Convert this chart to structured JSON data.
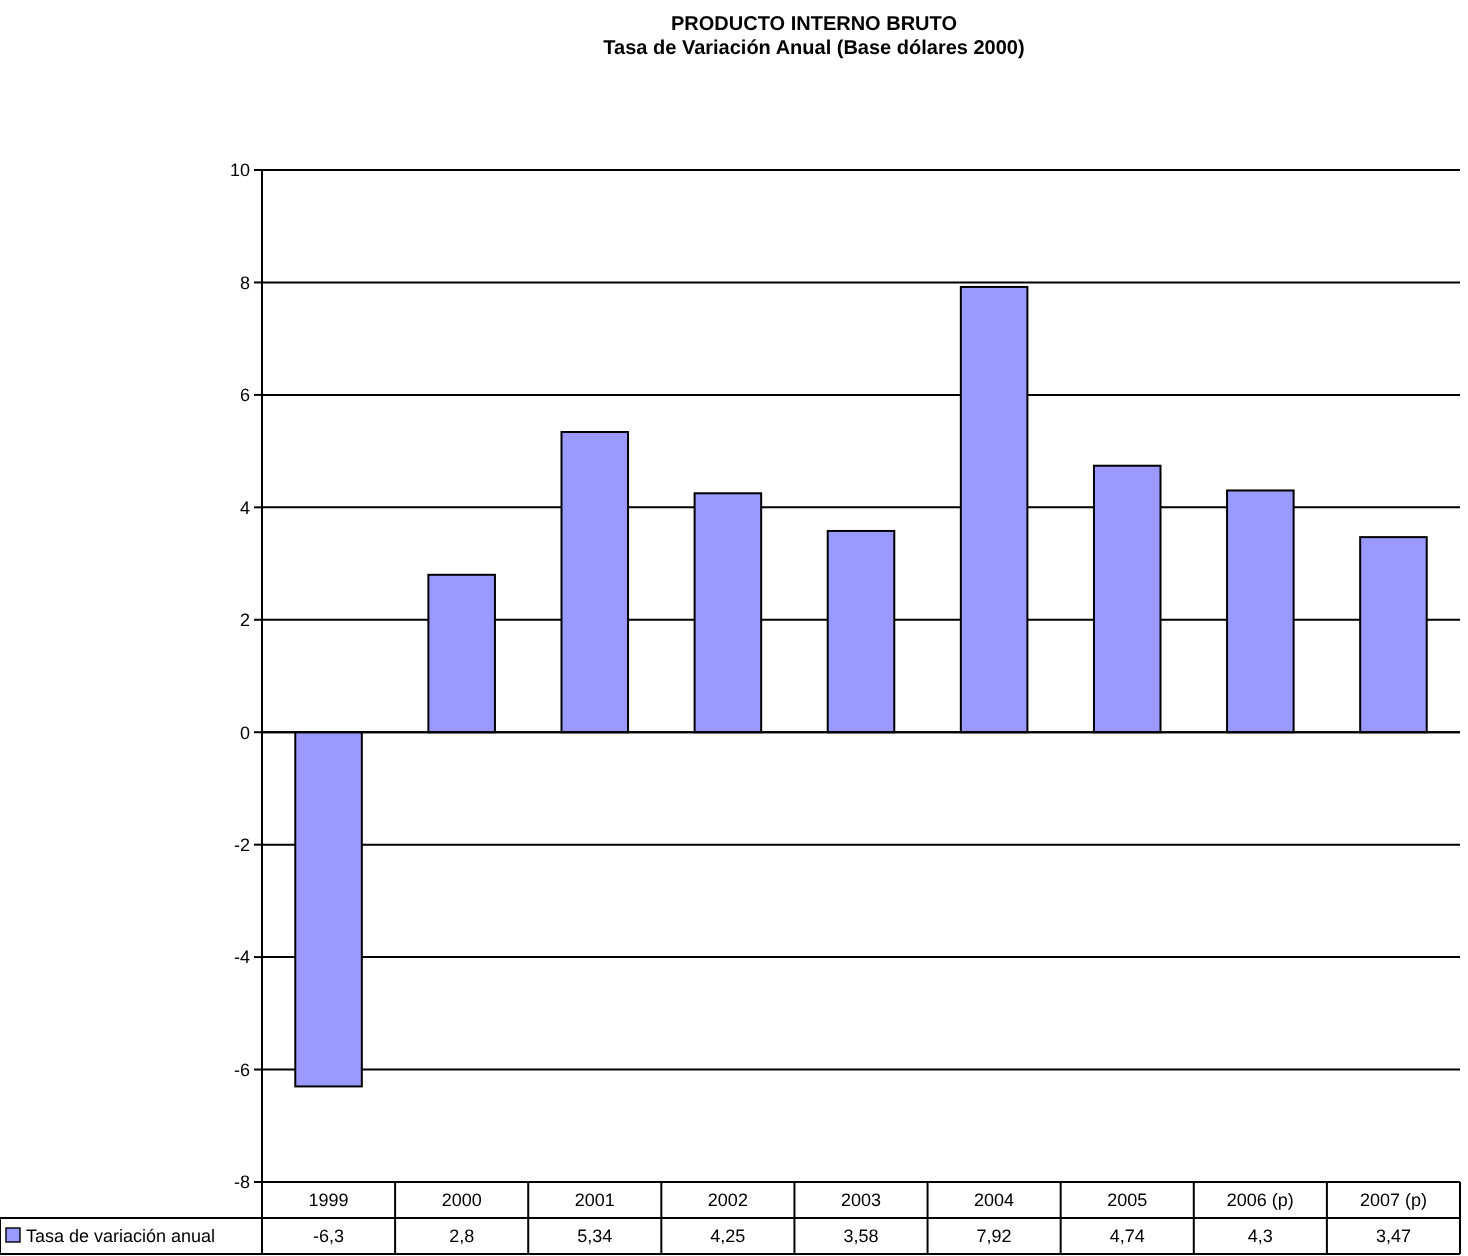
{
  "chart_data": {
    "type": "bar",
    "title": "PRODUCTO INTERNO BRUTO",
    "subtitle": "Tasa de Variación Anual (Base dólares 2000)",
    "categories": [
      "1999",
      "2000",
      "2001",
      "2002",
      "2003",
      "2004",
      "2005",
      "2006 (p)",
      "2007 (p)"
    ],
    "series": [
      {
        "name": "Tasa de variación anual",
        "color": "#9999ff",
        "values": [
          -6.3,
          2.8,
          5.34,
          4.25,
          3.58,
          7.92,
          4.74,
          4.3,
          3.47
        ],
        "value_labels": [
          "-6,3",
          "2,8",
          "5,34",
          "4,25",
          "3,58",
          "7,92",
          "4,74",
          "4,3",
          "3,47"
        ]
      }
    ],
    "ylim": [
      -8,
      10
    ],
    "yticks": [
      -8,
      -6,
      -4,
      -2,
      0,
      2,
      4,
      6,
      8,
      10
    ],
    "grid": "y",
    "legend": "bottom"
  }
}
